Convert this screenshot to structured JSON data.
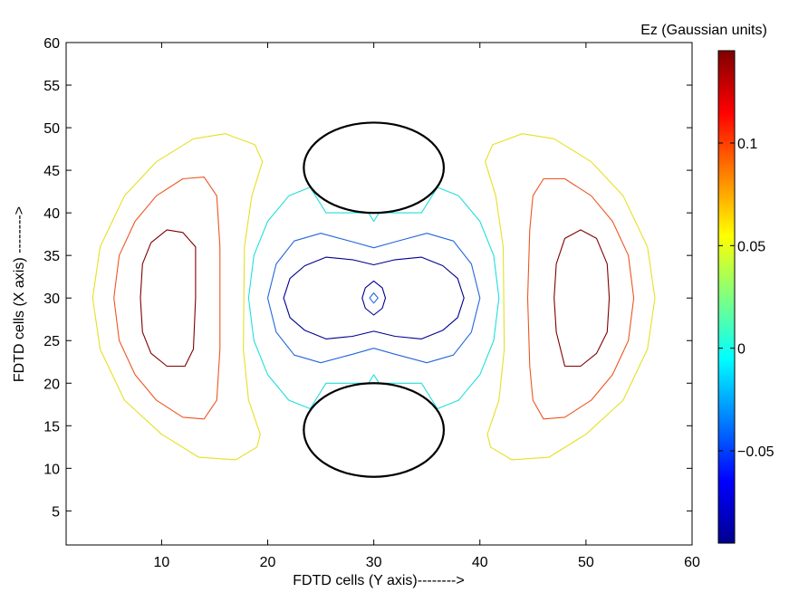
{
  "chart_data": {
    "type": "contour",
    "colorbar_title": "Ez (Gaussian units)",
    "xlabel": "FDTD cells (Y axis)-------->",
    "ylabel": "FDTD cells (X axis) -------->",
    "xlim": [
      1,
      60
    ],
    "ylim": [
      1,
      60
    ],
    "x_ticks": [
      10,
      20,
      30,
      40,
      50,
      60
    ],
    "y_ticks": [
      5,
      10,
      15,
      20,
      25,
      30,
      35,
      40,
      45,
      50,
      55,
      60
    ],
    "colorbar": {
      "min": -0.095,
      "max": 0.145,
      "ticks": [
        -0.05,
        0,
        0.05,
        0.1
      ],
      "tick_labels": [
        "−0.05",
        "0",
        "0.05",
        "0.1"
      ],
      "colormap": "jet"
    },
    "contours": [
      {
        "level": 0.13,
        "color": "#7f0000",
        "paths": [
          [
            [
              8,
              30
            ],
            [
              8.2,
              34
            ],
            [
              9,
              36.5
            ],
            [
              10.5,
              38
            ],
            [
              12,
              37.7
            ],
            [
              13.2,
              36
            ],
            [
              13.2,
              30
            ],
            [
              13,
              24
            ],
            [
              12.2,
              22
            ],
            [
              10.5,
              22
            ],
            [
              9,
              23.5
            ],
            [
              8.2,
              26
            ],
            [
              8,
              30
            ]
          ],
          [
            [
              47,
              30
            ],
            [
              47.2,
              34
            ],
            [
              48,
              37
            ],
            [
              49.5,
              38
            ],
            [
              51,
              37
            ],
            [
              52,
              34
            ],
            [
              52.2,
              30
            ],
            [
              52,
              26
            ],
            [
              51,
              23.5
            ],
            [
              49.5,
              22
            ],
            [
              48,
              22
            ],
            [
              47.2,
              26
            ],
            [
              47,
              30
            ]
          ]
        ]
      },
      {
        "level": 0.1,
        "color": "#ee5522",
        "paths": [
          [
            [
              5.5,
              30
            ],
            [
              6,
              35
            ],
            [
              7.5,
              39
            ],
            [
              9.5,
              42
            ],
            [
              12,
              44
            ],
            [
              14,
              44.2
            ],
            [
              15.2,
              42
            ],
            [
              15.5,
              36
            ],
            [
              15.5,
              24
            ],
            [
              15.2,
              18
            ],
            [
              14,
              15.8
            ],
            [
              12,
              16
            ],
            [
              9.5,
              18
            ],
            [
              7.5,
              21
            ],
            [
              6,
              25
            ],
            [
              5.5,
              30
            ]
          ],
          [
            [
              44.5,
              30
            ],
            [
              44.7,
              38
            ],
            [
              45,
              42
            ],
            [
              46,
              44
            ],
            [
              48,
              44
            ],
            [
              50.5,
              42
            ],
            [
              52.5,
              39
            ],
            [
              54,
              35
            ],
            [
              54.5,
              30
            ],
            [
              54,
              25
            ],
            [
              52.5,
              21
            ],
            [
              50.5,
              18
            ],
            [
              48,
              16
            ],
            [
              46,
              15.8
            ],
            [
              45,
              18
            ],
            [
              44.7,
              22
            ],
            [
              44.5,
              30
            ]
          ]
        ]
      },
      {
        "level": 0.055,
        "color": "#e6e022",
        "paths": [
          [
            [
              3.5,
              30
            ],
            [
              4.2,
              36
            ],
            [
              6.5,
              42
            ],
            [
              9.5,
              46
            ],
            [
              13,
              48.7
            ],
            [
              16,
              49.3
            ],
            [
              18.8,
              48
            ],
            [
              19.5,
              46
            ],
            [
              18.5,
              42
            ],
            [
              17.8,
              36
            ],
            [
              17.7,
              24
            ],
            [
              18.2,
              18
            ],
            [
              19.3,
              14
            ],
            [
              19,
              12.5
            ],
            [
              17,
              11
            ],
            [
              13.5,
              11.3
            ],
            [
              10,
              14
            ],
            [
              6.5,
              18
            ],
            [
              4.2,
              24
            ],
            [
              3.5,
              30
            ]
          ],
          [
            [
              56.5,
              30
            ],
            [
              55.8,
              36
            ],
            [
              53.5,
              42
            ],
            [
              50.5,
              46
            ],
            [
              47,
              48.7
            ],
            [
              44,
              49.3
            ],
            [
              41.2,
              48
            ],
            [
              40.5,
              46
            ],
            [
              41.5,
              42
            ],
            [
              42.2,
              36
            ],
            [
              42.3,
              24
            ],
            [
              41.8,
              18
            ],
            [
              40.7,
              14
            ],
            [
              41,
              12.5
            ],
            [
              43,
              11
            ],
            [
              46.5,
              11.3
            ],
            [
              50,
              14
            ],
            [
              53.5,
              18
            ],
            [
              55.8,
              24
            ],
            [
              56.5,
              30
            ]
          ]
        ]
      },
      {
        "level": 0.0,
        "color": "#22dddd",
        "paths": [
          [
            [
              24,
              43
            ],
            [
              25.5,
              40
            ],
            [
              29.5,
              40
            ],
            [
              30,
              39
            ],
            [
              30.5,
              40
            ],
            [
              34.5,
              40
            ],
            [
              36,
              43
            ],
            [
              38,
              42
            ],
            [
              40,
              39
            ],
            [
              41.3,
              35
            ],
            [
              41.8,
              30
            ],
            [
              41.3,
              25
            ],
            [
              40,
              21
            ],
            [
              38,
              18
            ],
            [
              36,
              17
            ],
            [
              34.5,
              20
            ],
            [
              30.5,
              20
            ],
            [
              30,
              21
            ],
            [
              29.5,
              20
            ],
            [
              25.5,
              20
            ],
            [
              24,
              17
            ],
            [
              22,
              18
            ],
            [
              20,
              21
            ],
            [
              18.7,
              25
            ],
            [
              18.2,
              30
            ],
            [
              18.7,
              35
            ],
            [
              20,
              39
            ],
            [
              22,
              42
            ],
            [
              24,
              43
            ]
          ]
        ]
      },
      {
        "level": -0.025,
        "color": "#2266dd",
        "paths": [
          [
            [
              20,
              30
            ],
            [
              20.8,
              34
            ],
            [
              22.5,
              36.7
            ],
            [
              25,
              37.6
            ],
            [
              28,
              36.6
            ],
            [
              30,
              35.9
            ],
            [
              32,
              36.6
            ],
            [
              35,
              37.6
            ],
            [
              37.5,
              36.7
            ],
            [
              39.2,
              34
            ],
            [
              40,
              30
            ],
            [
              39.2,
              26
            ],
            [
              37.5,
              23.3
            ],
            [
              35,
              22.4
            ],
            [
              32,
              23.4
            ],
            [
              30,
              24.1
            ],
            [
              28,
              23.4
            ],
            [
              25,
              22.4
            ],
            [
              22.5,
              23.3
            ],
            [
              20.8,
              26
            ],
            [
              20,
              30
            ]
          ],
          [
            [
              29.6,
              30
            ],
            [
              30,
              30.6
            ],
            [
              30.4,
              30
            ],
            [
              30,
              29.4
            ],
            [
              29.6,
              30
            ]
          ]
        ]
      },
      {
        "level": -0.05,
        "color": "#000090",
        "paths": [
          [
            [
              21.5,
              30
            ],
            [
              22.1,
              32.3
            ],
            [
              23.5,
              33.8
            ],
            [
              25.5,
              34.8
            ],
            [
              28,
              34.5
            ],
            [
              30,
              33.9
            ],
            [
              32,
              34.5
            ],
            [
              34.5,
              34.8
            ],
            [
              36.5,
              33.8
            ],
            [
              37.9,
              32.3
            ],
            [
              38.5,
              30
            ],
            [
              37.9,
              27.7
            ],
            [
              36.5,
              26.2
            ],
            [
              34.5,
              25.2
            ],
            [
              32,
              25.5
            ],
            [
              30,
              26.1
            ],
            [
              28,
              25.5
            ],
            [
              25.5,
              25.2
            ],
            [
              23.5,
              26.2
            ],
            [
              22.1,
              27.7
            ],
            [
              21.5,
              30
            ]
          ],
          [
            [
              28.9,
              30
            ],
            [
              29.2,
              31.2
            ],
            [
              30,
              32
            ],
            [
              30.8,
              31.2
            ],
            [
              31.1,
              30
            ],
            [
              30.8,
              28.8
            ],
            [
              30,
              28
            ],
            [
              29.2,
              28.8
            ],
            [
              28.9,
              30
            ]
          ]
        ]
      }
    ],
    "cylinders": [
      {
        "cx": 30,
        "cy": 45.3,
        "rx": 6.6,
        "ry": 5.3,
        "color": "#000000"
      },
      {
        "cx": 30,
        "cy": 14.5,
        "rx": 6.6,
        "ry": 5.5,
        "color": "#000000"
      }
    ]
  }
}
